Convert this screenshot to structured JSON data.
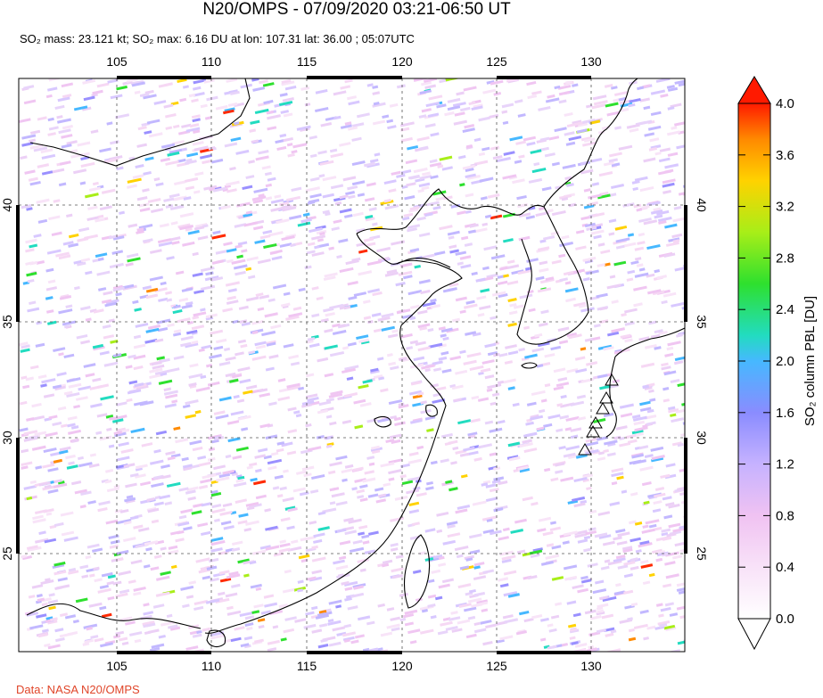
{
  "title": "N20/OMPS - 07/09/2020 03:21-06:50 UT",
  "subtitle": "SO₂ mass: 23.121 kt; SO₂ max: 6.16 DU at lon: 107.31 lat: 36.00 ; 05:07UTC",
  "credit": "Data: NASA N20/OMPS",
  "map": {
    "lon_ticks": [
      "105",
      "110",
      "115",
      "120",
      "125",
      "130"
    ],
    "lat_ticks": [
      "40",
      "35",
      "30",
      "25"
    ],
    "lon_range": [
      100.5,
      135.5
    ],
    "lat_range": [
      20.5,
      45.0
    ]
  },
  "colorbar": {
    "label": "SO₂ column PBL [DU]",
    "ticks": [
      "4.0",
      "3.6",
      "3.2",
      "2.8",
      "2.4",
      "2.0",
      "1.6",
      "1.2",
      "0.8",
      "0.4",
      "0.0"
    ],
    "colors": [
      "#ff1a00",
      "#ff8a00",
      "#ffd200",
      "#a8ee18",
      "#2ee02e",
      "#22dcc0",
      "#46b8ff",
      "#8a8cff",
      "#c0b0ff",
      "#f2c8f4",
      "#ffffff"
    ]
  },
  "volcano_markers": 6
}
